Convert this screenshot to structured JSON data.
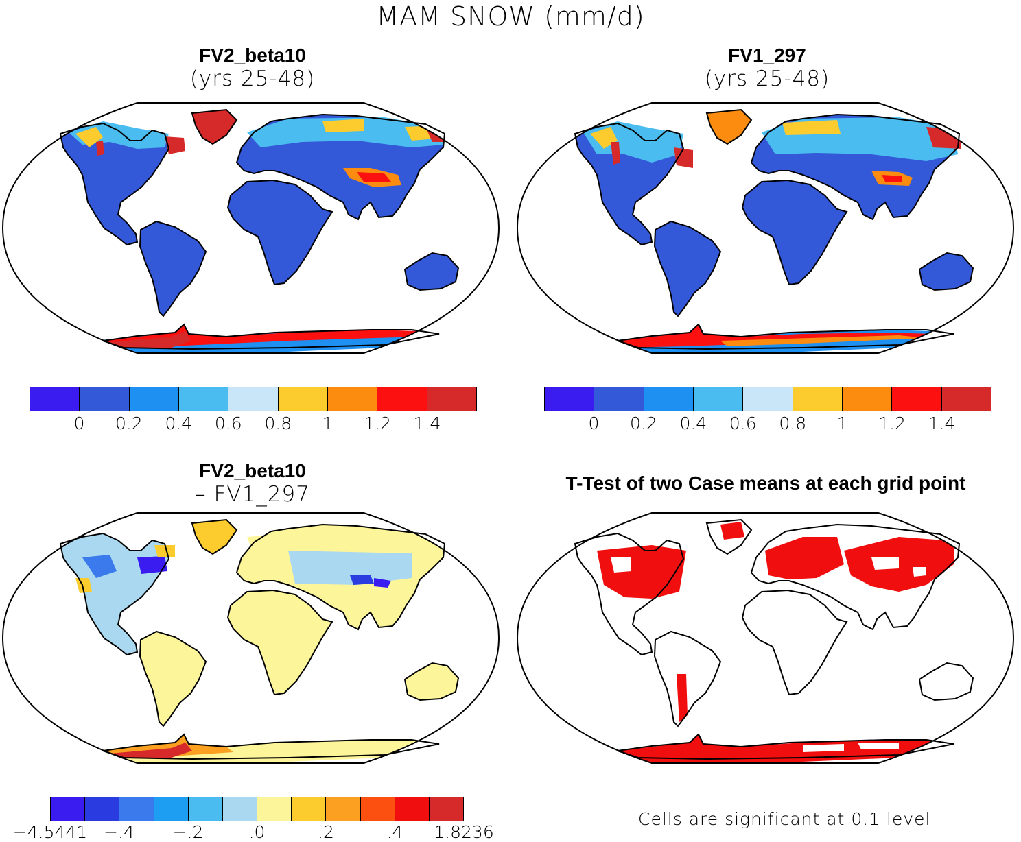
{
  "title": "MAM SNOW (mm/d)",
  "panels": {
    "p1": {
      "name": "FV2_beta10",
      "subtitle": "(yrs 25-48)"
    },
    "p2": {
      "name": "FV1_297",
      "subtitle": "(yrs 25-48)"
    },
    "p3": {
      "name": "FV2_beta10",
      "subtitle": "– FV1_297"
    },
    "p4": {
      "name": "T-Test of two Case means at each grid point",
      "note": "Cells are significant at 0.1 level"
    }
  },
  "colorbars": {
    "abs": {
      "colors": [
        "#3a1cf0",
        "#3358d8",
        "#1e90f2",
        "#4bbcef",
        "#c8e6f8",
        "#fccb2e",
        "#fb8c10",
        "#fc1010",
        "#d62a2a"
      ],
      "ticks": [
        "0",
        "0.2",
        "0.4",
        "0.6",
        "0.8",
        "1",
        "1.2",
        "1.4"
      ]
    },
    "diff": {
      "colors": [
        "#3a1cf0",
        "#2a3ce0",
        "#3a7aec",
        "#1e9ef2",
        "#4bbcef",
        "#aad8f0",
        "#fcf59a",
        "#fccb2e",
        "#fba020",
        "#fb5010",
        "#f00e0e",
        "#d62a2a"
      ],
      "ticks": [
        "−4.5441",
        "−.4",
        "−.2",
        ".0",
        ".2",
        ".4",
        "1.8236"
      ]
    }
  },
  "icons": {
    "map_projection": "robinson-world-map"
  }
}
